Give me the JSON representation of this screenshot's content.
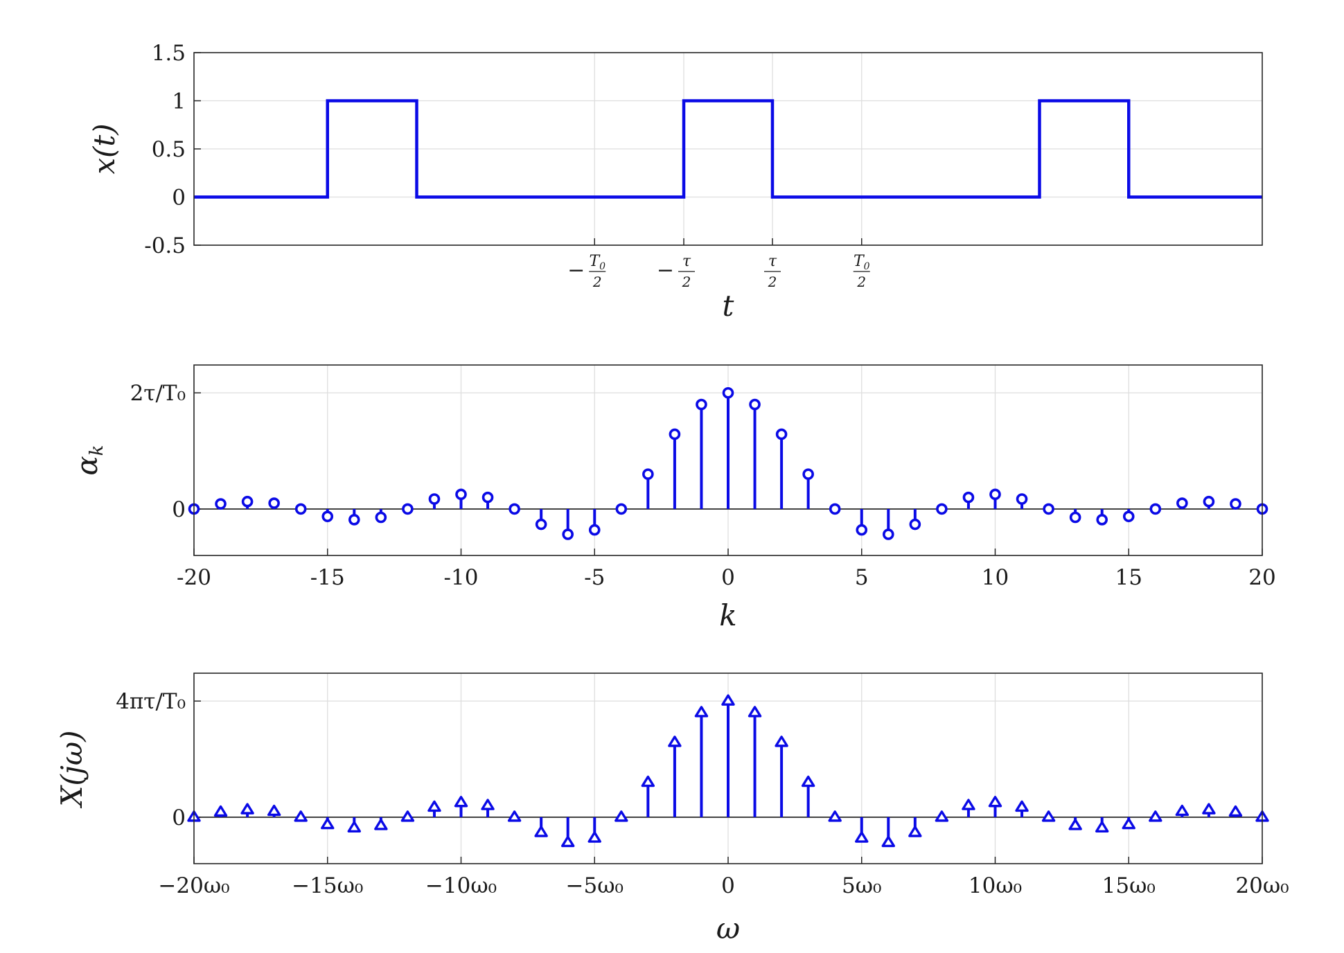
{
  "colors": {
    "series": "#0a0ae6",
    "axis": "#262626",
    "grid": "#dedede",
    "background": "#ffffff"
  },
  "chart_data": [
    {
      "type": "line",
      "ylabel": "x(t)",
      "xlabel": "t",
      "ylim": [
        -0.5,
        1.5
      ],
      "xlim": [
        -2.0,
        2.0
      ],
      "x_scale_note": "t in units of T0",
      "yticks": [
        {
          "value": -0.5,
          "label": "-0.5"
        },
        {
          "value": 0,
          "label": "0"
        },
        {
          "value": 0.5,
          "label": "0.5"
        },
        {
          "value": 1,
          "label": "1"
        },
        {
          "value": 1.5,
          "label": "1.5"
        }
      ],
      "xticks": [
        {
          "value": -0.5,
          "sign": "−",
          "num": "T",
          "num_sub": "0",
          "den": "2"
        },
        {
          "value": -0.166,
          "sign": "−",
          "num": "τ",
          "num_sub": "",
          "den": "2"
        },
        {
          "value": 0.166,
          "sign": "",
          "num": "τ",
          "num_sub": "",
          "den": "2"
        },
        {
          "value": 0.5,
          "sign": "",
          "num": "T",
          "num_sub": "0",
          "den": "2"
        }
      ],
      "grid": true,
      "series": [
        {
          "x": [
            -2.0,
            -1.5,
            -1.5,
            -1.166,
            -1.166,
            -0.166,
            -0.166,
            0.166,
            0.166,
            1.166,
            1.166,
            1.5,
            1.5,
            2.0
          ],
          "y": [
            0,
            0,
            1,
            1,
            0,
            0,
            1,
            1,
            0,
            0,
            1,
            1,
            0,
            0
          ]
        }
      ]
    },
    {
      "type": "stem",
      "marker": "circle",
      "ylabel": "α",
      "ylabel_sub": "k",
      "xlabel": "k",
      "xlim": [
        -20,
        20
      ],
      "ylim": [
        -0.2,
        0.62
      ],
      "xticks": [
        {
          "value": -20,
          "label": "-20"
        },
        {
          "value": -15,
          "label": "-15"
        },
        {
          "value": -10,
          "label": "-10"
        },
        {
          "value": -5,
          "label": "-5"
        },
        {
          "value": 0,
          "label": "0"
        },
        {
          "value": 5,
          "label": "5"
        },
        {
          "value": 10,
          "label": "10"
        },
        {
          "value": 15,
          "label": "15"
        },
        {
          "value": 20,
          "label": "20"
        }
      ],
      "yticks": [
        {
          "value": 0,
          "label": "0"
        },
        {
          "value": 0.5,
          "label": "2τ/T₀"
        }
      ],
      "grid": true,
      "k": [
        -20,
        -19,
        -18,
        -17,
        -16,
        -15,
        -14,
        -13,
        -12,
        -11,
        -10,
        -9,
        -8,
        -7,
        -6,
        -5,
        -4,
        -3,
        -2,
        -1,
        0,
        1,
        2,
        3,
        4,
        5,
        6,
        7,
        8,
        9,
        10,
        11,
        12,
        13,
        14,
        15,
        16,
        17,
        18,
        19,
        20
      ],
      "values": [
        0,
        0.022,
        0.032,
        0.025,
        0,
        -0.032,
        -0.046,
        -0.036,
        0,
        0.043,
        0.063,
        0.05,
        0,
        -0.066,
        -0.109,
        -0.09,
        0,
        0.15,
        0.322,
        0.45,
        0.5,
        0.45,
        0.322,
        0.15,
        0,
        -0.09,
        -0.109,
        -0.066,
        0,
        0.05,
        0.063,
        0.043,
        0,
        -0.036,
        -0.046,
        -0.032,
        0,
        0.025,
        0.032,
        0.022,
        0
      ]
    },
    {
      "type": "stem",
      "marker": "triangle",
      "ylabel": "X(jω)",
      "xlabel": "ω",
      "xlim": [
        -20,
        20
      ],
      "ylim": [
        -0.2,
        0.62
      ],
      "xticks": [
        {
          "value": -20,
          "label": "−20ω₀"
        },
        {
          "value": -15,
          "label": "−15ω₀"
        },
        {
          "value": -10,
          "label": "−10ω₀"
        },
        {
          "value": -5,
          "label": "−5ω₀"
        },
        {
          "value": 0,
          "label": "0"
        },
        {
          "value": 5,
          "label": "5ω₀"
        },
        {
          "value": 10,
          "label": "10ω₀"
        },
        {
          "value": 15,
          "label": "15ω₀"
        },
        {
          "value": 20,
          "label": "20ω₀"
        }
      ],
      "yticks": [
        {
          "value": 0,
          "label": "0"
        },
        {
          "value": 0.5,
          "label": "4πτ/T₀"
        }
      ],
      "grid": true,
      "omega_over_omega0": [
        -20,
        -19,
        -18,
        -17,
        -16,
        -15,
        -14,
        -13,
        -12,
        -11,
        -10,
        -9,
        -8,
        -7,
        -6,
        -5,
        -4,
        -3,
        -2,
        -1,
        0,
        1,
        2,
        3,
        4,
        5,
        6,
        7,
        8,
        9,
        10,
        11,
        12,
        13,
        14,
        15,
        16,
        17,
        18,
        19,
        20
      ],
      "values": [
        0,
        0.022,
        0.032,
        0.025,
        0,
        -0.032,
        -0.046,
        -0.036,
        0,
        0.043,
        0.063,
        0.05,
        0,
        -0.066,
        -0.109,
        -0.09,
        0,
        0.15,
        0.322,
        0.45,
        0.5,
        0.45,
        0.322,
        0.15,
        0,
        -0.09,
        -0.109,
        -0.066,
        0,
        0.05,
        0.063,
        0.043,
        0,
        -0.036,
        -0.046,
        -0.032,
        0,
        0.025,
        0.032,
        0.022,
        0
      ]
    }
  ]
}
